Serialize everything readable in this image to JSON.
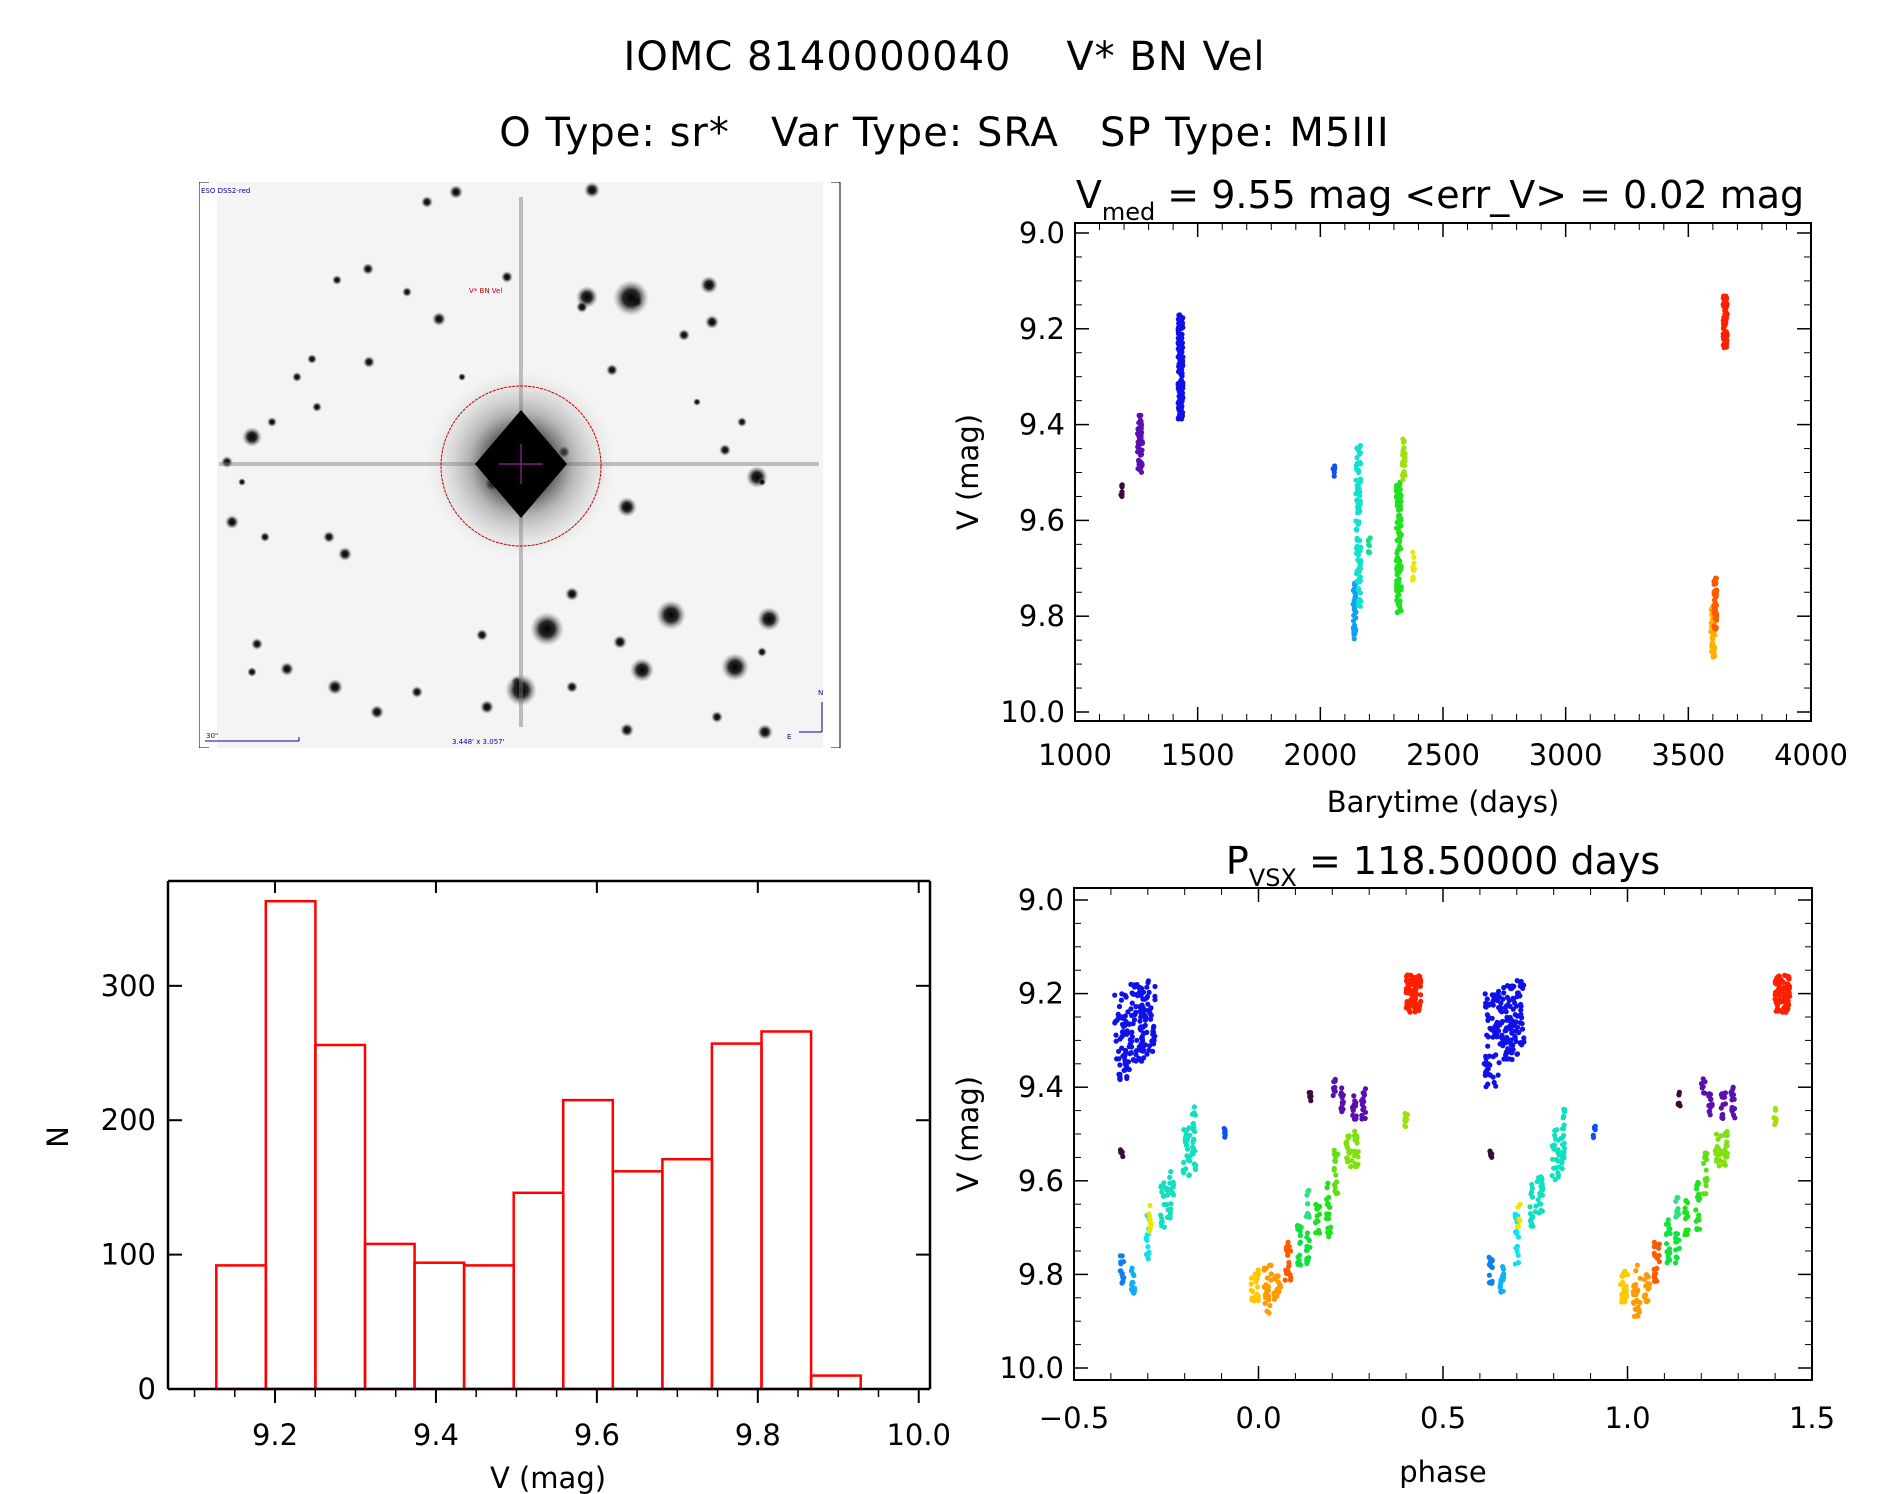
{
  "header": {
    "title_line1": "IOMC 8140000040    V* BN Vel",
    "title_line2": "O Type: sr*   Var Type: SRA   SP Type: M5III"
  },
  "sky_image": {
    "survey_label": "ESO DSS2-red",
    "target_label": "V* BN Vel",
    "scale_bar_label": "30\"",
    "fov_label": "3.448' x 3.057'",
    "compass_north": "N",
    "compass_east": "E",
    "marker_color": "#c00000",
    "label_color": "#0000a0"
  },
  "chart_data": [
    {
      "id": "light_curve",
      "type": "scatter",
      "title_main": "V",
      "title_sub": "med",
      "title_rest": " = 9.55 mag <err_V> = 0.02 mag",
      "xlabel": "Barytime (days)",
      "ylabel": "V (mag)",
      "xlim": [
        1000,
        4000
      ],
      "ylim": [
        9.0,
        10.0
      ],
      "y_inverted": true,
      "xticks": [
        1000,
        1500,
        2000,
        2500,
        3000,
        3500,
        4000
      ],
      "xtick_labels": [
        "1000",
        "1500",
        "2000",
        "2500",
        "3000",
        "3500",
        "4000"
      ],
      "yticks": [
        9.0,
        9.2,
        9.4,
        9.6,
        9.8,
        10.0
      ],
      "ytick_labels": [
        "9.0",
        "9.2",
        "9.4",
        "9.6",
        "9.8",
        "10.0"
      ],
      "segments": [
        {
          "x": 1190,
          "xspread": 4,
          "ymin": 9.52,
          "ymax": 9.55,
          "color": "#3a0a3a",
          "n": 8
        },
        {
          "x": 1265,
          "xspread": 10,
          "ymin": 9.38,
          "ymax": 9.5,
          "color": "#5a10b0",
          "n": 60
        },
        {
          "x": 1430,
          "xspread": 10,
          "ymin": 9.17,
          "ymax": 9.39,
          "color": "#1010e8",
          "n": 160
        },
        {
          "x": 2055,
          "xspread": 4,
          "ymin": 9.48,
          "ymax": 9.51,
          "color": "#1050f0",
          "n": 8
        },
        {
          "x": 2140,
          "xspread": 6,
          "ymin": 9.73,
          "ymax": 9.85,
          "color": "#10a0f0",
          "n": 40
        },
        {
          "x": 2155,
          "xspread": 10,
          "ymin": 9.44,
          "ymax": 9.78,
          "color": "#10e0d0",
          "n": 90
        },
        {
          "x": 2200,
          "xspread": 4,
          "ymin": 9.63,
          "ymax": 9.67,
          "color": "#10e090",
          "n": 8
        },
        {
          "x": 2320,
          "xspread": 10,
          "ymin": 9.52,
          "ymax": 9.8,
          "color": "#20e020",
          "n": 110
        },
        {
          "x": 2340,
          "xspread": 6,
          "ymin": 9.43,
          "ymax": 9.52,
          "color": "#a0e010",
          "n": 30
        },
        {
          "x": 2380,
          "xspread": 4,
          "ymin": 9.66,
          "ymax": 9.73,
          "color": "#e8e800",
          "n": 10
        },
        {
          "x": 3600,
          "xspread": 8,
          "ymin": 9.77,
          "ymax": 9.89,
          "color": "#ffb000",
          "n": 40
        },
        {
          "x": 3610,
          "xspread": 6,
          "ymin": 9.72,
          "ymax": 9.83,
          "color": "#ff5a00",
          "n": 40
        },
        {
          "x": 3650,
          "xspread": 8,
          "ymin": 9.13,
          "ymax": 9.24,
          "color": "#ff2000",
          "n": 80
        }
      ]
    },
    {
      "id": "histogram",
      "type": "bar",
      "title": "",
      "xlabel": "V (mag)",
      "ylabel": "N",
      "xlim": [
        9.067,
        10.014
      ],
      "ylim": [
        0,
        378
      ],
      "bin_start": 9.127,
      "bin_width": 0.0616,
      "values": [
        92,
        363,
        256,
        108,
        94,
        92,
        146,
        215,
        162,
        171,
        257,
        266,
        10
      ],
      "bar_color": "#ff0000",
      "xticks": [
        9.2,
        9.4,
        9.6,
        9.8,
        10.0
      ],
      "xtick_labels": [
        "9.2",
        "9.4",
        "9.6",
        "9.8",
        "10.0"
      ],
      "yticks": [
        0,
        100,
        200,
        300
      ],
      "ytick_labels": [
        "0",
        "100",
        "200",
        "300"
      ]
    },
    {
      "id": "phase_curve",
      "type": "scatter",
      "title_main": "P",
      "title_sub": "VSX",
      "title_rest": " = 118.50000 days",
      "period_days": 118.5,
      "xlabel": "phase",
      "ylabel": "V (mag)",
      "xlim": [
        -0.5,
        1.5
      ],
      "ylim": [
        9.0,
        10.0
      ],
      "y_inverted": true,
      "xticks": [
        -0.5,
        0.0,
        0.5,
        1.0,
        1.5
      ],
      "xtick_labels": [
        "−0.5",
        "0.0",
        "0.5",
        "1.0",
        "1.5"
      ],
      "yticks": [
        9.0,
        9.2,
        9.4,
        9.6,
        9.8,
        10.0
      ],
      "ytick_labels": [
        "9.0",
        "9.2",
        "9.4",
        "9.6",
        "9.8",
        "10.0"
      ],
      "repeat_offset": 1.0,
      "segments": [
        {
          "x": -0.37,
          "xspread": 0.02,
          "ymin": 9.2,
          "ymax": 9.4,
          "color": "#1010e8",
          "n": 60
        },
        {
          "x": -0.33,
          "xspread": 0.02,
          "ymin": 9.18,
          "ymax": 9.35,
          "color": "#1010e8",
          "n": 60
        },
        {
          "x": -0.3,
          "xspread": 0.02,
          "ymin": 9.17,
          "ymax": 9.33,
          "color": "#1010e8",
          "n": 60
        },
        {
          "x": -0.37,
          "xspread": 0.004,
          "ymin": 9.52,
          "ymax": 9.55,
          "color": "#3a0a3a",
          "n": 6
        },
        {
          "x": -0.37,
          "xspread": 0.005,
          "ymin": 9.76,
          "ymax": 9.82,
          "color": "#1080f0",
          "n": 14
        },
        {
          "x": -0.34,
          "xspread": 0.005,
          "ymin": 9.78,
          "ymax": 9.84,
          "color": "#10b0f0",
          "n": 14
        },
        {
          "x": -0.3,
          "xspread": 0.005,
          "ymin": 9.67,
          "ymax": 9.78,
          "color": "#10e0f0",
          "n": 18
        },
        {
          "x": -0.295,
          "xspread": 0.004,
          "ymin": 9.65,
          "ymax": 9.71,
          "color": "#e8e800",
          "n": 8
        },
        {
          "x": -0.26,
          "xspread": 0.005,
          "ymin": 9.6,
          "ymax": 9.7,
          "color": "#10e0c0",
          "n": 14
        },
        {
          "x": -0.24,
          "xspread": 0.01,
          "ymin": 9.58,
          "ymax": 9.68,
          "color": "#10e0c0",
          "n": 24
        },
        {
          "x": -0.195,
          "xspread": 0.01,
          "ymin": 9.48,
          "ymax": 9.6,
          "color": "#10e0c0",
          "n": 24
        },
        {
          "x": -0.175,
          "xspread": 0.005,
          "ymin": 9.44,
          "ymax": 9.58,
          "color": "#10e0c0",
          "n": 24
        },
        {
          "x": -0.09,
          "xspread": 0.003,
          "ymin": 9.48,
          "ymax": 9.51,
          "color": "#1050f0",
          "n": 6
        },
        {
          "x": -0.01,
          "xspread": 0.01,
          "ymin": 9.79,
          "ymax": 9.86,
          "color": "#ffc800",
          "n": 24
        },
        {
          "x": 0.025,
          "xspread": 0.01,
          "ymin": 9.78,
          "ymax": 9.89,
          "color": "#ff9a00",
          "n": 30
        },
        {
          "x": 0.05,
          "xspread": 0.01,
          "ymin": 9.8,
          "ymax": 9.86,
          "color": "#ff9a00",
          "n": 20
        },
        {
          "x": 0.08,
          "xspread": 0.008,
          "ymin": 9.73,
          "ymax": 9.82,
          "color": "#ff5a00",
          "n": 20
        },
        {
          "x": 0.11,
          "xspread": 0.006,
          "ymin": 9.68,
          "ymax": 9.78,
          "color": "#10e040",
          "n": 16
        },
        {
          "x": 0.135,
          "xspread": 0.006,
          "ymin": 9.7,
          "ymax": 9.78,
          "color": "#10e040",
          "n": 12
        },
        {
          "x": 0.135,
          "xspread": 0.006,
          "ymin": 9.62,
          "ymax": 9.68,
          "color": "#30e080",
          "n": 10
        },
        {
          "x": 0.16,
          "xspread": 0.006,
          "ymin": 9.64,
          "ymax": 9.72,
          "color": "#20e020",
          "n": 14
        },
        {
          "x": 0.19,
          "xspread": 0.006,
          "ymin": 9.6,
          "ymax": 9.72,
          "color": "#20e020",
          "n": 18
        },
        {
          "x": 0.21,
          "xspread": 0.006,
          "ymin": 9.53,
          "ymax": 9.63,
          "color": "#60e010",
          "n": 16
        },
        {
          "x": 0.245,
          "xspread": 0.008,
          "ymin": 9.5,
          "ymax": 9.57,
          "color": "#80e010",
          "n": 16
        },
        {
          "x": 0.265,
          "xspread": 0.006,
          "ymin": 9.49,
          "ymax": 9.57,
          "color": "#80e010",
          "n": 16
        },
        {
          "x": 0.14,
          "xspread": 0.003,
          "ymin": 9.41,
          "ymax": 9.44,
          "color": "#3a0a3a",
          "n": 6
        },
        {
          "x": 0.205,
          "xspread": 0.005,
          "ymin": 9.38,
          "ymax": 9.42,
          "color": "#5a10b0",
          "n": 8
        },
        {
          "x": 0.225,
          "xspread": 0.005,
          "ymin": 9.4,
          "ymax": 9.46,
          "color": "#5a10b0",
          "n": 14
        },
        {
          "x": 0.26,
          "xspread": 0.006,
          "ymin": 9.41,
          "ymax": 9.47,
          "color": "#5a10b0",
          "n": 14
        },
        {
          "x": 0.285,
          "xspread": 0.006,
          "ymin": 9.4,
          "ymax": 9.47,
          "color": "#5a10b0",
          "n": 14
        },
        {
          "x": 0.4,
          "xspread": 0.004,
          "ymin": 9.44,
          "ymax": 9.49,
          "color": "#a0e010",
          "n": 8
        },
        {
          "x": 0.42,
          "xspread": 0.02,
          "ymin": 9.16,
          "ymax": 9.24,
          "color": "#ff2000",
          "n": 90
        }
      ]
    }
  ]
}
